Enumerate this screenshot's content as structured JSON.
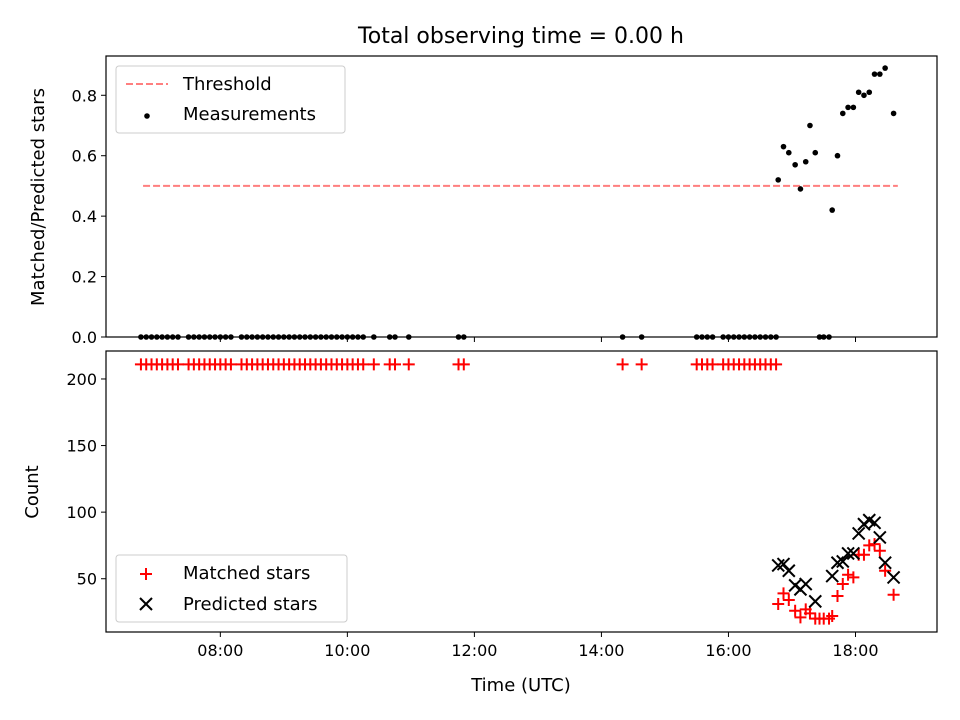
{
  "chart_data": [
    {
      "panel": "top",
      "type": "scatter",
      "title": "Total observing time = 0.00 h",
      "xlabel": "",
      "ylabel": "Matched/Predicted stars",
      "xlim": [
        "06:12",
        "19:17"
      ],
      "ylim": [
        0,
        0.93
      ],
      "yticks": [
        0.0,
        0.2,
        0.4,
        0.6,
        0.8
      ],
      "ytick_labels": [
        "0.0",
        "0.2",
        "0.4",
        "0.6",
        "0.8"
      ],
      "xticks": [
        "08:00",
        "10:00",
        "12:00",
        "14:00",
        "16:00",
        "18:00"
      ],
      "legend": {
        "placement": "upper-left",
        "entries": [
          {
            "label": "Threshold",
            "marker": "dashed-line",
            "color": "#ff7f7f"
          },
          {
            "label": "Measurements",
            "marker": "dot",
            "color": "#000000"
          }
        ]
      },
      "series": [
        {
          "name": "Threshold",
          "style": "dashed-line",
          "color": "#ff7f7f",
          "points": [
            {
              "t": "06:47",
              "y": 0.5
            },
            {
              "t": "18:40",
              "y": 0.5
            }
          ]
        },
        {
          "name": "Measurements",
          "style": "dot",
          "color": "#000000",
          "points": [
            {
              "t": "06:45",
              "y": 0
            },
            {
              "t": "06:50",
              "y": 0
            },
            {
              "t": "06:55",
              "y": 0
            },
            {
              "t": "07:00",
              "y": 0
            },
            {
              "t": "07:05",
              "y": 0
            },
            {
              "t": "07:10",
              "y": 0
            },
            {
              "t": "07:15",
              "y": 0
            },
            {
              "t": "07:20",
              "y": 0
            },
            {
              "t": "07:30",
              "y": 0
            },
            {
              "t": "07:35",
              "y": 0
            },
            {
              "t": "07:40",
              "y": 0
            },
            {
              "t": "07:45",
              "y": 0
            },
            {
              "t": "07:50",
              "y": 0
            },
            {
              "t": "07:55",
              "y": 0
            },
            {
              "t": "08:00",
              "y": 0
            },
            {
              "t": "08:05",
              "y": 0
            },
            {
              "t": "08:10",
              "y": 0
            },
            {
              "t": "08:20",
              "y": 0
            },
            {
              "t": "08:25",
              "y": 0
            },
            {
              "t": "08:30",
              "y": 0
            },
            {
              "t": "08:35",
              "y": 0
            },
            {
              "t": "08:40",
              "y": 0
            },
            {
              "t": "08:45",
              "y": 0
            },
            {
              "t": "08:50",
              "y": 0
            },
            {
              "t": "08:55",
              "y": 0
            },
            {
              "t": "09:00",
              "y": 0
            },
            {
              "t": "09:05",
              "y": 0
            },
            {
              "t": "09:10",
              "y": 0
            },
            {
              "t": "09:15",
              "y": 0
            },
            {
              "t": "09:20",
              "y": 0
            },
            {
              "t": "09:25",
              "y": 0
            },
            {
              "t": "09:30",
              "y": 0
            },
            {
              "t": "09:35",
              "y": 0
            },
            {
              "t": "09:40",
              "y": 0
            },
            {
              "t": "09:45",
              "y": 0
            },
            {
              "t": "09:50",
              "y": 0
            },
            {
              "t": "09:55",
              "y": 0
            },
            {
              "t": "10:00",
              "y": 0
            },
            {
              "t": "10:05",
              "y": 0
            },
            {
              "t": "10:10",
              "y": 0
            },
            {
              "t": "10:15",
              "y": 0
            },
            {
              "t": "10:25",
              "y": 0
            },
            {
              "t": "10:40",
              "y": 0
            },
            {
              "t": "10:45",
              "y": 0
            },
            {
              "t": "10:58",
              "y": 0
            },
            {
              "t": "11:45",
              "y": 0
            },
            {
              "t": "11:50",
              "y": 0
            },
            {
              "t": "14:20",
              "y": 0
            },
            {
              "t": "14:38",
              "y": 0
            },
            {
              "t": "15:30",
              "y": 0
            },
            {
              "t": "15:35",
              "y": 0
            },
            {
              "t": "15:40",
              "y": 0
            },
            {
              "t": "15:45",
              "y": 0
            },
            {
              "t": "15:55",
              "y": 0
            },
            {
              "t": "16:00",
              "y": 0
            },
            {
              "t": "16:05",
              "y": 0
            },
            {
              "t": "16:10",
              "y": 0
            },
            {
              "t": "16:15",
              "y": 0
            },
            {
              "t": "16:20",
              "y": 0
            },
            {
              "t": "16:25",
              "y": 0
            },
            {
              "t": "16:30",
              "y": 0
            },
            {
              "t": "16:35",
              "y": 0
            },
            {
              "t": "16:40",
              "y": 0
            },
            {
              "t": "16:45",
              "y": 0
            },
            {
              "t": "17:26",
              "y": 0
            },
            {
              "t": "17:30",
              "y": 0
            },
            {
              "t": "17:35",
              "y": 0
            },
            {
              "t": "16:47",
              "y": 0.52
            },
            {
              "t": "16:52",
              "y": 0.63
            },
            {
              "t": "16:57",
              "y": 0.61
            },
            {
              "t": "17:03",
              "y": 0.57
            },
            {
              "t": "17:08",
              "y": 0.49
            },
            {
              "t": "17:13",
              "y": 0.58
            },
            {
              "t": "17:17",
              "y": 0.7
            },
            {
              "t": "17:22",
              "y": 0.61
            },
            {
              "t": "17:38",
              "y": 0.42
            },
            {
              "t": "17:43",
              "y": 0.6
            },
            {
              "t": "17:48",
              "y": 0.74
            },
            {
              "t": "17:53",
              "y": 0.76
            },
            {
              "t": "17:58",
              "y": 0.76
            },
            {
              "t": "18:03",
              "y": 0.81
            },
            {
              "t": "18:08",
              "y": 0.8
            },
            {
              "t": "18:13",
              "y": 0.81
            },
            {
              "t": "18:18",
              "y": 0.87
            },
            {
              "t": "18:23",
              "y": 0.87
            },
            {
              "t": "18:28",
              "y": 0.89
            },
            {
              "t": "18:36",
              "y": 0.74
            }
          ]
        }
      ]
    },
    {
      "panel": "bottom",
      "type": "scatter",
      "xlabel": "Time (UTC)",
      "ylabel": "Count",
      "xlim": [
        "06:12",
        "19:17"
      ],
      "ylim": [
        10,
        221
      ],
      "yticks": [
        50,
        100,
        150,
        200
      ],
      "ytick_labels": [
        "50",
        "100",
        "150",
        "200"
      ],
      "xticks": [
        "08:00",
        "10:00",
        "12:00",
        "14:00",
        "16:00",
        "18:00"
      ],
      "xtick_labels": [
        "08:00",
        "10:00",
        "12:00",
        "14:00",
        "16:00",
        "18:00"
      ],
      "legend": {
        "placement": "lower-left",
        "entries": [
          {
            "label": "Matched stars",
            "marker": "plus",
            "color": "#ff0000"
          },
          {
            "label": "Predicted stars",
            "marker": "x",
            "color": "#000000"
          }
        ]
      },
      "series": [
        {
          "name": "Matched stars",
          "style": "plus",
          "color": "#ff0000",
          "points": [
            {
              "t": "06:45",
              "y": 211
            },
            {
              "t": "06:50",
              "y": 211
            },
            {
              "t": "06:55",
              "y": 211
            },
            {
              "t": "07:00",
              "y": 211
            },
            {
              "t": "07:05",
              "y": 211
            },
            {
              "t": "07:10",
              "y": 211
            },
            {
              "t": "07:15",
              "y": 211
            },
            {
              "t": "07:20",
              "y": 211
            },
            {
              "t": "07:30",
              "y": 211
            },
            {
              "t": "07:35",
              "y": 211
            },
            {
              "t": "07:40",
              "y": 211
            },
            {
              "t": "07:45",
              "y": 211
            },
            {
              "t": "07:50",
              "y": 211
            },
            {
              "t": "07:55",
              "y": 211
            },
            {
              "t": "08:00",
              "y": 211
            },
            {
              "t": "08:05",
              "y": 211
            },
            {
              "t": "08:10",
              "y": 211
            },
            {
              "t": "08:20",
              "y": 211
            },
            {
              "t": "08:25",
              "y": 211
            },
            {
              "t": "08:30",
              "y": 211
            },
            {
              "t": "08:35",
              "y": 211
            },
            {
              "t": "08:40",
              "y": 211
            },
            {
              "t": "08:45",
              "y": 211
            },
            {
              "t": "08:50",
              "y": 211
            },
            {
              "t": "08:55",
              "y": 211
            },
            {
              "t": "09:00",
              "y": 211
            },
            {
              "t": "09:05",
              "y": 211
            },
            {
              "t": "09:10",
              "y": 211
            },
            {
              "t": "09:15",
              "y": 211
            },
            {
              "t": "09:20",
              "y": 211
            },
            {
              "t": "09:25",
              "y": 211
            },
            {
              "t": "09:30",
              "y": 211
            },
            {
              "t": "09:35",
              "y": 211
            },
            {
              "t": "09:40",
              "y": 211
            },
            {
              "t": "09:45",
              "y": 211
            },
            {
              "t": "09:50",
              "y": 211
            },
            {
              "t": "09:55",
              "y": 211
            },
            {
              "t": "10:00",
              "y": 211
            },
            {
              "t": "10:05",
              "y": 211
            },
            {
              "t": "10:10",
              "y": 211
            },
            {
              "t": "10:15",
              "y": 211
            },
            {
              "t": "10:25",
              "y": 211
            },
            {
              "t": "10:40",
              "y": 211
            },
            {
              "t": "10:45",
              "y": 211
            },
            {
              "t": "10:58",
              "y": 211
            },
            {
              "t": "11:45",
              "y": 211
            },
            {
              "t": "11:50",
              "y": 211
            },
            {
              "t": "14:20",
              "y": 211
            },
            {
              "t": "14:38",
              "y": 211
            },
            {
              "t": "15:30",
              "y": 211
            },
            {
              "t": "15:35",
              "y": 211
            },
            {
              "t": "15:40",
              "y": 211
            },
            {
              "t": "15:45",
              "y": 211
            },
            {
              "t": "15:55",
              "y": 211
            },
            {
              "t": "16:00",
              "y": 211
            },
            {
              "t": "16:05",
              "y": 211
            },
            {
              "t": "16:10",
              "y": 211
            },
            {
              "t": "16:15",
              "y": 211
            },
            {
              "t": "16:20",
              "y": 211
            },
            {
              "t": "16:25",
              "y": 211
            },
            {
              "t": "16:30",
              "y": 211
            },
            {
              "t": "16:35",
              "y": 211
            },
            {
              "t": "16:40",
              "y": 211
            },
            {
              "t": "16:45",
              "y": 211
            },
            {
              "t": "16:47",
              "y": 31
            },
            {
              "t": "16:52",
              "y": 39
            },
            {
              "t": "16:57",
              "y": 34
            },
            {
              "t": "17:03",
              "y": 26
            },
            {
              "t": "17:08",
              "y": 21
            },
            {
              "t": "17:13",
              "y": 27
            },
            {
              "t": "17:17",
              "y": 24
            },
            {
              "t": "17:22",
              "y": 20
            },
            {
              "t": "17:26",
              "y": 20
            },
            {
              "t": "17:30",
              "y": 20
            },
            {
              "t": "17:35",
              "y": 20
            },
            {
              "t": "17:38",
              "y": 22
            },
            {
              "t": "17:43",
              "y": 37
            },
            {
              "t": "17:48",
              "y": 46
            },
            {
              "t": "17:53",
              "y": 53
            },
            {
              "t": "17:58",
              "y": 51
            },
            {
              "t": "18:03",
              "y": 68
            },
            {
              "t": "18:08",
              "y": 68
            },
            {
              "t": "18:13",
              "y": 75
            },
            {
              "t": "18:18",
              "y": 76
            },
            {
              "t": "18:23",
              "y": 71
            },
            {
              "t": "18:28",
              "y": 56
            },
            {
              "t": "18:36",
              "y": 38
            }
          ]
        },
        {
          "name": "Predicted stars",
          "style": "x",
          "color": "#000000",
          "points": [
            {
              "t": "16:47",
              "y": 60
            },
            {
              "t": "16:52",
              "y": 61
            },
            {
              "t": "16:57",
              "y": 56
            },
            {
              "t": "17:03",
              "y": 45
            },
            {
              "t": "17:08",
              "y": 42
            },
            {
              "t": "17:13",
              "y": 46
            },
            {
              "t": "17:22",
              "y": 33
            },
            {
              "t": "17:38",
              "y": 52
            },
            {
              "t": "17:43",
              "y": 62
            },
            {
              "t": "17:48",
              "y": 63
            },
            {
              "t": "17:53",
              "y": 69
            },
            {
              "t": "17:58",
              "y": 69
            },
            {
              "t": "18:03",
              "y": 84
            },
            {
              "t": "18:08",
              "y": 91
            },
            {
              "t": "18:13",
              "y": 94
            },
            {
              "t": "18:18",
              "y": 92
            },
            {
              "t": "18:23",
              "y": 81
            },
            {
              "t": "18:28",
              "y": 62
            },
            {
              "t": "18:36",
              "y": 51
            }
          ]
        }
      ]
    }
  ]
}
